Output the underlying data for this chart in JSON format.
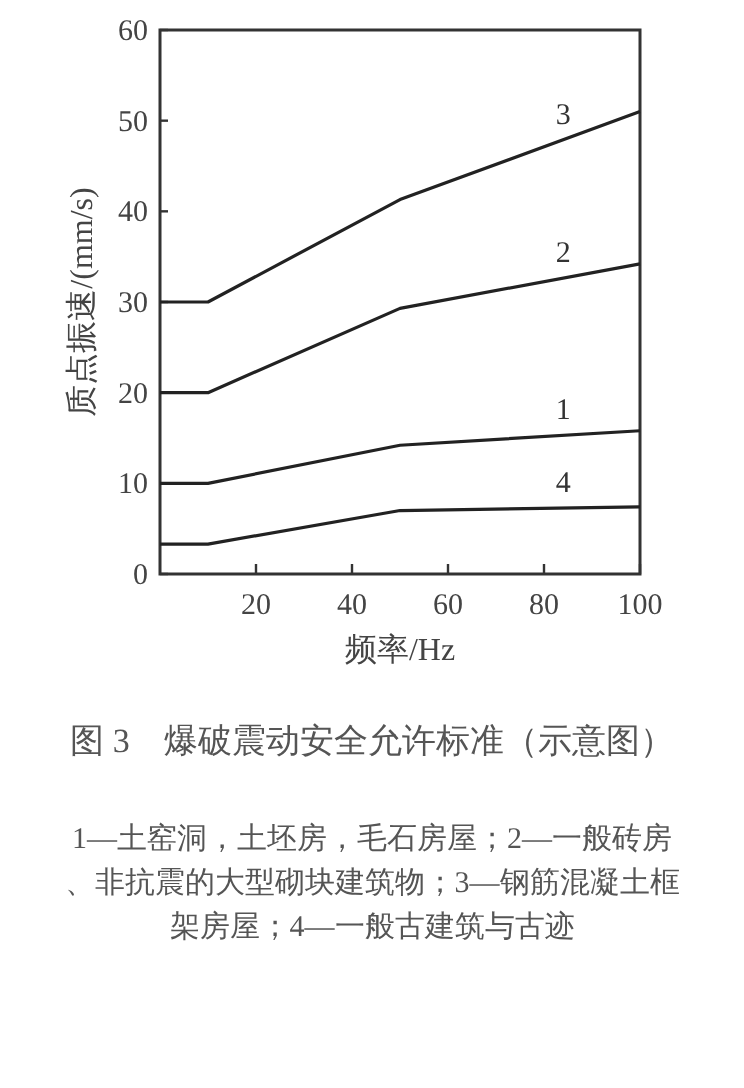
{
  "chart_data": {
    "type": "line",
    "title": "图 3　爆破震动安全允许标准（示意图）",
    "xlabel": "频率/Hz",
    "ylabel": "质点振速/(mm/s)",
    "x": [
      0,
      10,
      50,
      100
    ],
    "series": [
      {
        "name": "1",
        "color": "#222222",
        "values": [
          10,
          10,
          14.2,
          15.8
        ]
      },
      {
        "name": "2",
        "color": "#222222",
        "values": [
          20,
          20,
          29.3,
          34.2
        ]
      },
      {
        "name": "3",
        "color": "#222222",
        "values": [
          30,
          30,
          41.3,
          51
        ]
      },
      {
        "name": "4",
        "color": "#222222",
        "values": [
          3.3,
          3.3,
          7,
          7.4
        ]
      }
    ],
    "xlim": [
      0,
      100
    ],
    "ylim": [
      0,
      60
    ],
    "xticks": [
      20,
      40,
      60,
      80,
      100
    ],
    "yticks": [
      0,
      10,
      20,
      30,
      40,
      50,
      60
    ],
    "grid": false,
    "marker": "none",
    "line_style": "solid",
    "annotations": [
      "1—土窑洞，土坯房，毛石房屋；2—一般砖房、非抗震的大型砌块建筑物；3—钢筋混凝土框架房屋；4—一般古建筑与古迹"
    ]
  }
}
